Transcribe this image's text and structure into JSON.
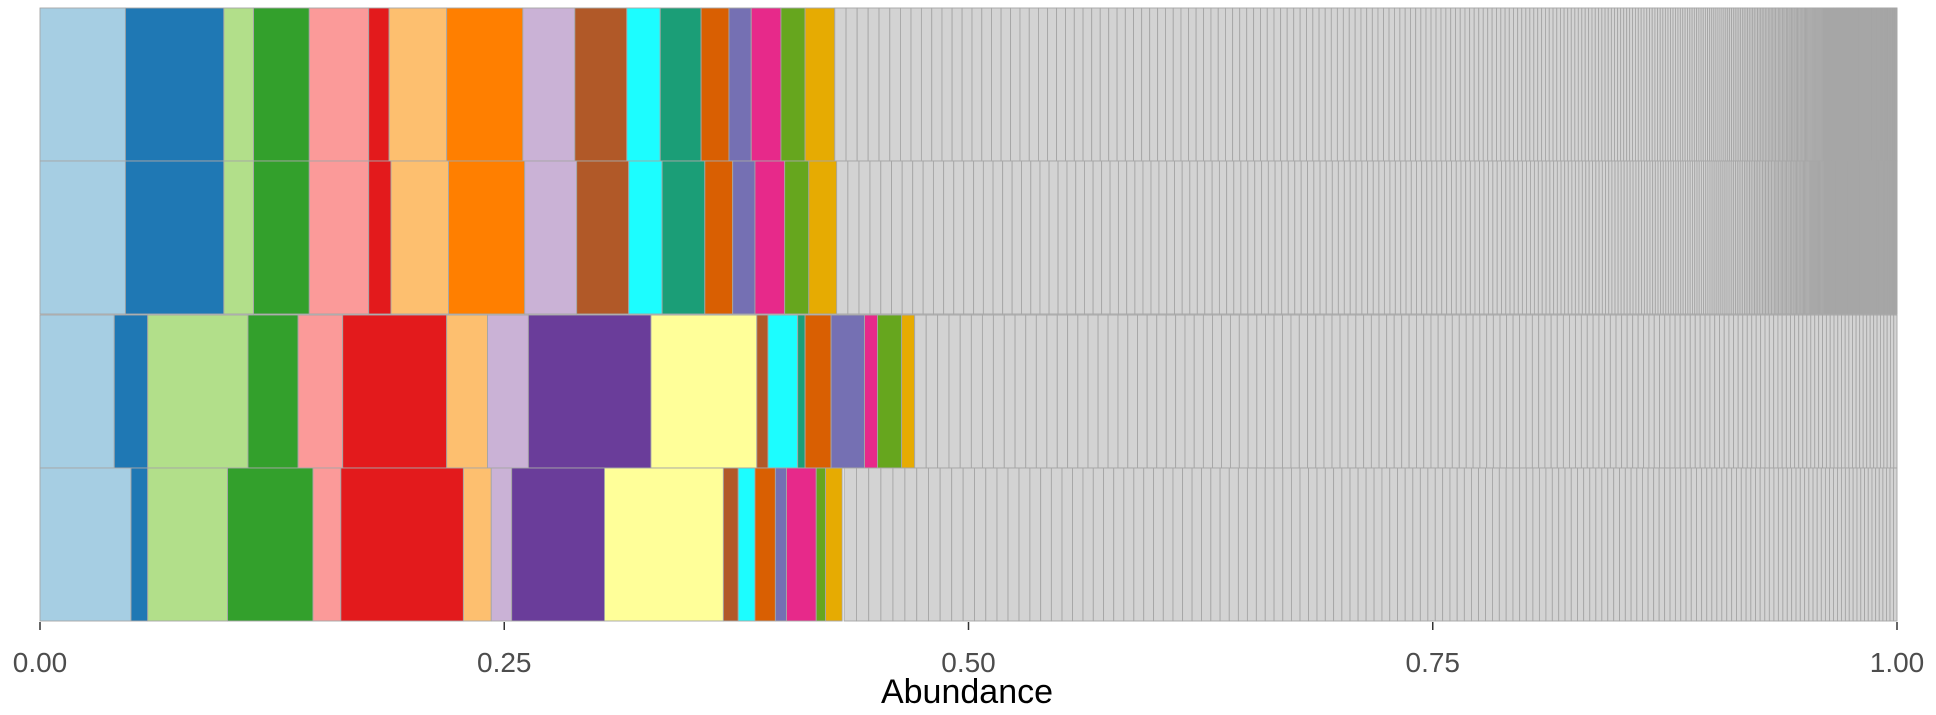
{
  "chart_data": {
    "type": "bar",
    "orientation": "horizontal",
    "stacked": true,
    "xlabel": "Abundance",
    "ylabel": "",
    "xlim": [
      0,
      1
    ],
    "x_ticks": [
      "0.00",
      "0.25",
      "0.50",
      "0.75",
      "1.00"
    ],
    "x_tick_values": [
      0,
      0.25,
      0.5,
      0.75,
      1.0
    ],
    "grid": false,
    "legend": "none",
    "bar_border_color": "#a6a6a6",
    "other_color": "#d3d3d3",
    "rows": [
      {
        "segments": [
          {
            "value": 0.046,
            "color": "#a6cee3"
          },
          {
            "value": 0.053,
            "color": "#1f78b4"
          },
          {
            "value": 0.016,
            "color": "#b2df8a"
          },
          {
            "value": 0.03,
            "color": "#33a02c"
          },
          {
            "value": 0.032,
            "color": "#fb9a99"
          },
          {
            "value": 0.011,
            "color": "#e31a1c"
          },
          {
            "value": 0.031,
            "color": "#fdbf6f"
          },
          {
            "value": 0.041,
            "color": "#ff7f00"
          },
          {
            "value": 0.028,
            "color": "#cab2d6"
          },
          {
            "value": 0.028,
            "color": "#b15928"
          },
          {
            "value": 0.018,
            "color": "#1cfdff"
          },
          {
            "value": 0.022,
            "color": "#1b9e77"
          },
          {
            "value": 0.015,
            "color": "#d95f02"
          },
          {
            "value": 0.012,
            "color": "#7570b3"
          },
          {
            "value": 0.016,
            "color": "#e7298a"
          },
          {
            "value": 0.013,
            "color": "#66a61e"
          },
          {
            "value": 0.016,
            "color": "#e6ab02"
          }
        ],
        "other": {
          "start": 0.428,
          "items": 420,
          "decay": 0.0105
        }
      },
      {
        "segments": [
          {
            "value": 0.046,
            "color": "#a6cee3"
          },
          {
            "value": 0.053,
            "color": "#1f78b4"
          },
          {
            "value": 0.016,
            "color": "#b2df8a"
          },
          {
            "value": 0.03,
            "color": "#33a02c"
          },
          {
            "value": 0.032,
            "color": "#fb9a99"
          },
          {
            "value": 0.012,
            "color": "#e31a1c"
          },
          {
            "value": 0.031,
            "color": "#fdbf6f"
          },
          {
            "value": 0.041,
            "color": "#ff7f00"
          },
          {
            "value": 0.028,
            "color": "#cab2d6"
          },
          {
            "value": 0.028,
            "color": "#b15928"
          },
          {
            "value": 0.018,
            "color": "#1cfdff"
          },
          {
            "value": 0.023,
            "color": "#1b9e77"
          },
          {
            "value": 0.015,
            "color": "#d95f02"
          },
          {
            "value": 0.012,
            "color": "#7570b3"
          },
          {
            "value": 0.016,
            "color": "#e7298a"
          },
          {
            "value": 0.013,
            "color": "#66a61e"
          },
          {
            "value": 0.016,
            "color": "#e6ab02"
          }
        ],
        "other": {
          "start": 0.429,
          "items": 420,
          "decay": 0.0105
        }
      },
      {
        "segments": [
          {
            "value": 0.04,
            "color": "#a6cee3"
          },
          {
            "value": 0.018,
            "color": "#1f78b4"
          },
          {
            "value": 0.054,
            "color": "#b2df8a"
          },
          {
            "value": 0.027,
            "color": "#33a02c"
          },
          {
            "value": 0.024,
            "color": "#fb9a99"
          },
          {
            "value": 0.056,
            "color": "#e31a1c"
          },
          {
            "value": 0.022,
            "color": "#fdbf6f"
          },
          {
            "value": 0.022,
            "color": "#cab2d6"
          },
          {
            "value": 0.066,
            "color": "#6a3d9a"
          },
          {
            "value": 0.057,
            "color": "#ffff99"
          },
          {
            "value": 0.006,
            "color": "#b15928"
          },
          {
            "value": 0.016,
            "color": "#1cfdff"
          },
          {
            "value": 0.004,
            "color": "#1b9e77"
          },
          {
            "value": 0.014,
            "color": "#d95f02"
          },
          {
            "value": 0.018,
            "color": "#7570b3"
          },
          {
            "value": 0.007,
            "color": "#e7298a"
          },
          {
            "value": 0.013,
            "color": "#66a61e"
          },
          {
            "value": 0.007,
            "color": "#e6ab02"
          }
        ],
        "other": {
          "start": 0.471,
          "items": 150,
          "decay": 0.0085
        }
      },
      {
        "segments": [
          {
            "value": 0.049,
            "color": "#a6cee3"
          },
          {
            "value": 0.009,
            "color": "#1f78b4"
          },
          {
            "value": 0.043,
            "color": "#b2df8a"
          },
          {
            "value": 0.046,
            "color": "#33a02c"
          },
          {
            "value": 0.015,
            "color": "#fb9a99"
          },
          {
            "value": 0.066,
            "color": "#e31a1c"
          },
          {
            "value": 0.015,
            "color": "#fdbf6f"
          },
          {
            "value": 0.011,
            "color": "#cab2d6"
          },
          {
            "value": 0.05,
            "color": "#6a3d9a"
          },
          {
            "value": 0.064,
            "color": "#ffff99"
          },
          {
            "value": 0.008,
            "color": "#b15928"
          },
          {
            "value": 0.009,
            "color": "#1cfdff"
          },
          {
            "value": 0.011,
            "color": "#d95f02"
          },
          {
            "value": 0.006,
            "color": "#7570b3"
          },
          {
            "value": 0.016,
            "color": "#e7298a"
          },
          {
            "value": 0.005,
            "color": "#66a61e"
          },
          {
            "value": 0.009,
            "color": "#e6ab02"
          }
        ],
        "other": {
          "start": 0.433,
          "items": 150,
          "decay": 0.0085
        }
      }
    ]
  }
}
